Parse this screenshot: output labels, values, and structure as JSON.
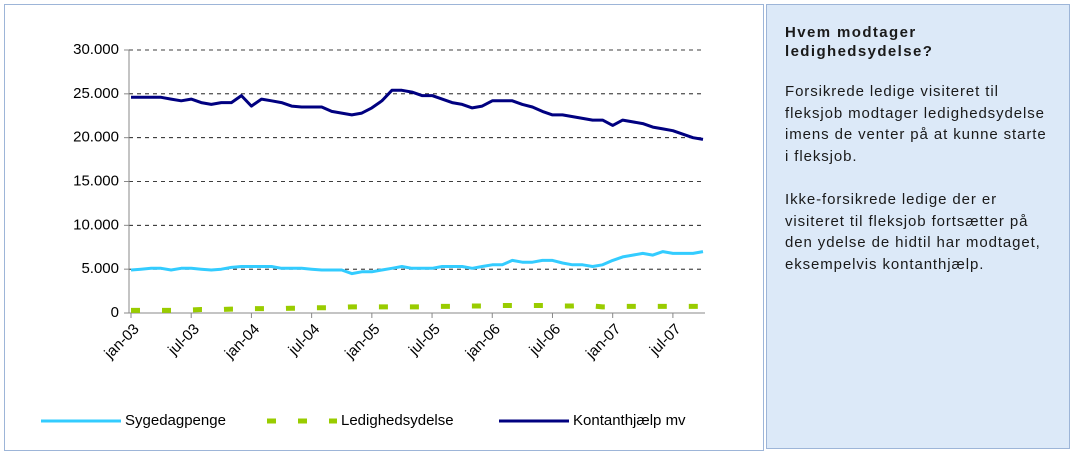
{
  "chart_data": {
    "type": "line",
    "categories": [
      "jan-03",
      null,
      null,
      null,
      null,
      null,
      "jul-03",
      null,
      null,
      null,
      null,
      null,
      "jan-04",
      null,
      null,
      null,
      null,
      null,
      "jul-04",
      null,
      null,
      null,
      null,
      null,
      "jan-05",
      null,
      null,
      null,
      null,
      null,
      "jul-05",
      null,
      null,
      null,
      null,
      null,
      "jan-06",
      null,
      null,
      null,
      null,
      null,
      "jul-06",
      null,
      null,
      null,
      null,
      null,
      "jan-07",
      null,
      null,
      null,
      null,
      null,
      "jul-07",
      null,
      null,
      null
    ],
    "series": [
      {
        "name": "Sygedagpenge",
        "color": "#33ccff",
        "dashed": false,
        "values": [
          4900,
          5000,
          5100,
          5100,
          4900,
          5100,
          5100,
          5000,
          4900,
          5000,
          5200,
          5300,
          5300,
          5300,
          5300,
          5100,
          5100,
          5100,
          5000,
          4900,
          4900,
          4900,
          4500,
          4700,
          4700,
          4900,
          5100,
          5300,
          5100,
          5100,
          5100,
          5300,
          5300,
          5300,
          5100,
          5300,
          5500,
          5500,
          6000,
          5800,
          5800,
          6000,
          6000,
          5700,
          5500,
          5500,
          5300,
          5500,
          6000,
          6400,
          6600,
          6800,
          6600,
          7000,
          6800,
          6800,
          6800,
          7000
        ]
      },
      {
        "name": "Ledighedsydelse",
        "color": "#99cc00",
        "dashed": true,
        "values": [
          300,
          300,
          300,
          300,
          300,
          300,
          350,
          400,
          400,
          400,
          450,
          450,
          500,
          500,
          500,
          500,
          550,
          550,
          600,
          600,
          600,
          650,
          700,
          700,
          700,
          700,
          700,
          700,
          700,
          700,
          750,
          750,
          750,
          800,
          800,
          800,
          800,
          850,
          850,
          850,
          850,
          850,
          850,
          800,
          800,
          850,
          800,
          700,
          700,
          750,
          750,
          750,
          750,
          750,
          750,
          750,
          750,
          750
        ]
      },
      {
        "name": "Kontanthjælp mv",
        "color": "#000080",
        "dashed": false,
        "values": [
          24600,
          24600,
          24600,
          24600,
          24400,
          24200,
          24400,
          24000,
          23800,
          24000,
          24000,
          24800,
          23600,
          24400,
          24200,
          24000,
          23600,
          23500,
          23500,
          23500,
          23000,
          22800,
          22600,
          22800,
          23400,
          24200,
          25400,
          25400,
          25200,
          24800,
          24800,
          24400,
          24000,
          23800,
          23400,
          23600,
          24200,
          24200,
          24200,
          23800,
          23500,
          23000,
          22600,
          22600,
          22400,
          22200,
          22000,
          22000,
          21400,
          22000,
          21800,
          21600,
          21200,
          21000,
          20800,
          20400,
          20000,
          19800
        ]
      }
    ],
    "ylim": [
      0,
      30000
    ],
    "yticks": [
      0,
      {
        "value": 5000,
        "label": "5.000"
      },
      {
        "value": 10000,
        "label": "10.000"
      },
      {
        "value": 15000,
        "label": "15.000"
      },
      {
        "value": 20000,
        "label": "20.000"
      },
      {
        "value": 25000,
        "label": "25.000"
      },
      {
        "value": 30000,
        "label": "30.000"
      }
    ],
    "grid": true,
    "legend": "bottom"
  },
  "panel": {
    "title": "Hvem modtager ledighedsydelse?",
    "paragraphs": [
      "Forsikrede ledige visiteret til fleksjob modtager ledighedsydelse imens de venter på at kunne starte i fleksjob.",
      "Ikke-forsikrede ledige der er visiteret til fleksjob fortsætter på den ydelse de hidtil har modtaget, eksempelvis kontanthjælp."
    ]
  }
}
